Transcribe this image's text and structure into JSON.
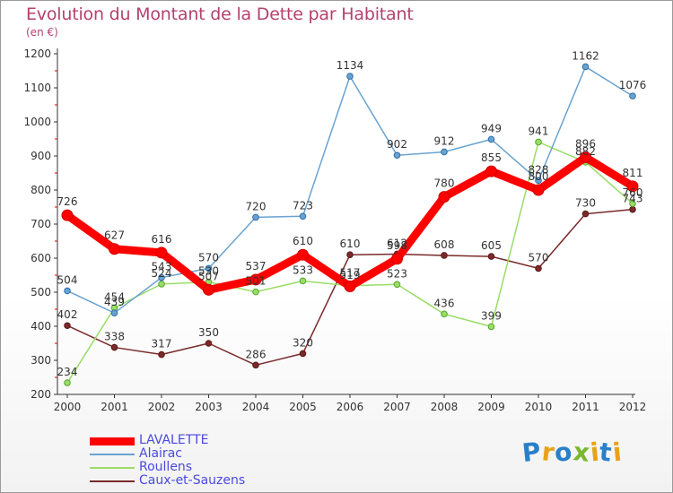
{
  "title": "Evolution du Montant de la Dette par Habitant",
  "subtitle": "(en €)",
  "logo": {
    "text": "Proxiti",
    "letter_colors": [
      "#2a7fc9",
      "#e8a21a",
      "#2a7fc9",
      "#7ab82d",
      "#e8a21a",
      "#2a7fc9",
      "#e8a21a"
    ]
  },
  "chart_data": {
    "type": "line",
    "x": [
      "2000",
      "2001",
      "2002",
      "2003",
      "2004",
      "2005",
      "2006",
      "2007",
      "2008",
      "2009",
      "2010",
      "2011",
      "2012"
    ],
    "ylim": [
      200,
      1200
    ],
    "yticks": [
      "200",
      "300",
      "400",
      "500",
      "600",
      "700",
      "800",
      "900",
      "1000",
      "1100",
      "1200"
    ],
    "grid": false,
    "legend_position": "bottom-left",
    "series": [
      {
        "name": "LAVALETTE",
        "color": "#ff0000",
        "width": 9,
        "values": [
          726,
          627,
          616,
          507,
          537,
          610,
          517,
          598,
          780,
          855,
          800,
          896,
          811
        ]
      },
      {
        "name": "Alairac",
        "color": "#6aa3d1",
        "width": 1.5,
        "values": [
          504,
          439,
          543,
          570,
          720,
          723,
          1134,
          902,
          912,
          949,
          828,
          1162,
          1076
        ]
      },
      {
        "name": "Roullens",
        "color": "#99dd66",
        "width": 1.5,
        "values": [
          234,
          454,
          524,
          530,
          501,
          533,
          519,
          523,
          436,
          399,
          941,
          882,
          760
        ]
      },
      {
        "name": "Caux-et-Sauzens",
        "color": "#7a2a2a",
        "width": 1.5,
        "values": [
          402,
          338,
          317,
          350,
          286,
          320,
          610,
          612,
          608,
          605,
          570,
          730,
          743
        ]
      }
    ]
  }
}
